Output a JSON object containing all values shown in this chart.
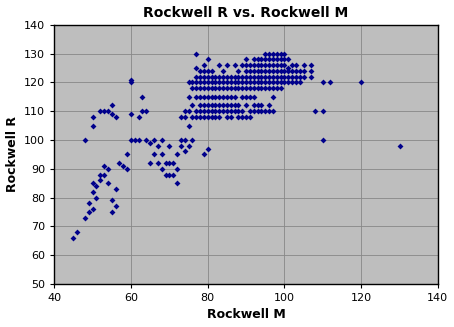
{
  "title": "Rockwell R vs. Rockwell M",
  "xlabel": "Rockwell M",
  "ylabel": "Rockwell R",
  "xlim": [
    40,
    140
  ],
  "ylim": [
    50,
    140
  ],
  "xticks": [
    40,
    60,
    80,
    100,
    120,
    140
  ],
  "yticks": [
    50,
    60,
    70,
    80,
    90,
    100,
    110,
    120,
    130,
    140
  ],
  "marker_color": "#00008B",
  "bg_color": "#BEBEBE",
  "points": [
    [
      45,
      66
    ],
    [
      46,
      68
    ],
    [
      48,
      73
    ],
    [
      49,
      75
    ],
    [
      49,
      78
    ],
    [
      50,
      76
    ],
    [
      50,
      82
    ],
    [
      50,
      85
    ],
    [
      51,
      80
    ],
    [
      51,
      84
    ],
    [
      52,
      86
    ],
    [
      52,
      88
    ],
    [
      53,
      88
    ],
    [
      53,
      91
    ],
    [
      54,
      85
    ],
    [
      54,
      90
    ],
    [
      55,
      75
    ],
    [
      55,
      79
    ],
    [
      56,
      77
    ],
    [
      56,
      83
    ],
    [
      48,
      100
    ],
    [
      50,
      105
    ],
    [
      50,
      108
    ],
    [
      52,
      110
    ],
    [
      53,
      110
    ],
    [
      54,
      110
    ],
    [
      55,
      109
    ],
    [
      55,
      112
    ],
    [
      56,
      108
    ],
    [
      57,
      92
    ],
    [
      58,
      91
    ],
    [
      59,
      90
    ],
    [
      59,
      95
    ],
    [
      60,
      100
    ],
    [
      60,
      109
    ],
    [
      60,
      120
    ],
    [
      60,
      121
    ],
    [
      61,
      100
    ],
    [
      62,
      100
    ],
    [
      62,
      108
    ],
    [
      63,
      110
    ],
    [
      63,
      115
    ],
    [
      64,
      100
    ],
    [
      64,
      110
    ],
    [
      65,
      92
    ],
    [
      65,
      99
    ],
    [
      66,
      95
    ],
    [
      66,
      100
    ],
    [
      67,
      92
    ],
    [
      67,
      98
    ],
    [
      68,
      90
    ],
    [
      68,
      95
    ],
    [
      68,
      100
    ],
    [
      69,
      88
    ],
    [
      69,
      92
    ],
    [
      70,
      88
    ],
    [
      70,
      92
    ],
    [
      70,
      98
    ],
    [
      71,
      88
    ],
    [
      71,
      92
    ],
    [
      72,
      85
    ],
    [
      72,
      90
    ],
    [
      72,
      95
    ],
    [
      73,
      98
    ],
    [
      73,
      100
    ],
    [
      73,
      108
    ],
    [
      74,
      96
    ],
    [
      74,
      100
    ],
    [
      74,
      108
    ],
    [
      74,
      110
    ],
    [
      75,
      98
    ],
    [
      75,
      105
    ],
    [
      75,
      110
    ],
    [
      75,
      115
    ],
    [
      75,
      120
    ],
    [
      76,
      100
    ],
    [
      76,
      108
    ],
    [
      76,
      112
    ],
    [
      76,
      118
    ],
    [
      76,
      120
    ],
    [
      77,
      108
    ],
    [
      77,
      110
    ],
    [
      77,
      115
    ],
    [
      77,
      118
    ],
    [
      77,
      120
    ],
    [
      77,
      122
    ],
    [
      77,
      125
    ],
    [
      77,
      130
    ],
    [
      78,
      108
    ],
    [
      78,
      110
    ],
    [
      78,
      112
    ],
    [
      78,
      115
    ],
    [
      78,
      118
    ],
    [
      78,
      120
    ],
    [
      78,
      122
    ],
    [
      78,
      124
    ],
    [
      79,
      95
    ],
    [
      79,
      108
    ],
    [
      79,
      110
    ],
    [
      79,
      112
    ],
    [
      79,
      115
    ],
    [
      79,
      118
    ],
    [
      79,
      120
    ],
    [
      79,
      122
    ],
    [
      79,
      124
    ],
    [
      79,
      126
    ],
    [
      80,
      97
    ],
    [
      80,
      108
    ],
    [
      80,
      110
    ],
    [
      80,
      112
    ],
    [
      80,
      115
    ],
    [
      80,
      118
    ],
    [
      80,
      120
    ],
    [
      80,
      122
    ],
    [
      80,
      124
    ],
    [
      80,
      128
    ],
    [
      81,
      108
    ],
    [
      81,
      110
    ],
    [
      81,
      112
    ],
    [
      81,
      115
    ],
    [
      81,
      118
    ],
    [
      81,
      120
    ],
    [
      81,
      122
    ],
    [
      81,
      124
    ],
    [
      82,
      108
    ],
    [
      82,
      110
    ],
    [
      82,
      112
    ],
    [
      82,
      115
    ],
    [
      82,
      118
    ],
    [
      82,
      120
    ],
    [
      82,
      122
    ],
    [
      83,
      108
    ],
    [
      83,
      110
    ],
    [
      83,
      112
    ],
    [
      83,
      115
    ],
    [
      83,
      118
    ],
    [
      83,
      120
    ],
    [
      83,
      122
    ],
    [
      83,
      126
    ],
    [
      84,
      110
    ],
    [
      84,
      112
    ],
    [
      84,
      115
    ],
    [
      84,
      118
    ],
    [
      84,
      120
    ],
    [
      84,
      122
    ],
    [
      84,
      124
    ],
    [
      85,
      108
    ],
    [
      85,
      110
    ],
    [
      85,
      112
    ],
    [
      85,
      115
    ],
    [
      85,
      118
    ],
    [
      85,
      120
    ],
    [
      85,
      122
    ],
    [
      85,
      126
    ],
    [
      86,
      108
    ],
    [
      86,
      110
    ],
    [
      86,
      112
    ],
    [
      86,
      115
    ],
    [
      86,
      118
    ],
    [
      86,
      120
    ],
    [
      86,
      122
    ],
    [
      87,
      110
    ],
    [
      87,
      112
    ],
    [
      87,
      115
    ],
    [
      87,
      118
    ],
    [
      87,
      120
    ],
    [
      87,
      122
    ],
    [
      87,
      126
    ],
    [
      88,
      108
    ],
    [
      88,
      110
    ],
    [
      88,
      112
    ],
    [
      88,
      118
    ],
    [
      88,
      120
    ],
    [
      88,
      122
    ],
    [
      88,
      124
    ],
    [
      89,
      108
    ],
    [
      89,
      110
    ],
    [
      89,
      115
    ],
    [
      89,
      118
    ],
    [
      89,
      120
    ],
    [
      89,
      122
    ],
    [
      89,
      126
    ],
    [
      90,
      108
    ],
    [
      90,
      112
    ],
    [
      90,
      115
    ],
    [
      90,
      118
    ],
    [
      90,
      120
    ],
    [
      90,
      122
    ],
    [
      90,
      124
    ],
    [
      90,
      126
    ],
    [
      90,
      128
    ],
    [
      91,
      108
    ],
    [
      91,
      110
    ],
    [
      91,
      115
    ],
    [
      91,
      118
    ],
    [
      91,
      120
    ],
    [
      91,
      122
    ],
    [
      91,
      124
    ],
    [
      91,
      126
    ],
    [
      92,
      110
    ],
    [
      92,
      112
    ],
    [
      92,
      115
    ],
    [
      92,
      118
    ],
    [
      92,
      120
    ],
    [
      92,
      122
    ],
    [
      92,
      124
    ],
    [
      92,
      126
    ],
    [
      92,
      128
    ],
    [
      93,
      110
    ],
    [
      93,
      112
    ],
    [
      93,
      118
    ],
    [
      93,
      120
    ],
    [
      93,
      122
    ],
    [
      93,
      124
    ],
    [
      93,
      126
    ],
    [
      93,
      128
    ],
    [
      94,
      110
    ],
    [
      94,
      112
    ],
    [
      94,
      118
    ],
    [
      94,
      120
    ],
    [
      94,
      122
    ],
    [
      94,
      124
    ],
    [
      94,
      126
    ],
    [
      94,
      128
    ],
    [
      95,
      110
    ],
    [
      95,
      118
    ],
    [
      95,
      120
    ],
    [
      95,
      122
    ],
    [
      95,
      124
    ],
    [
      95,
      126
    ],
    [
      95,
      128
    ],
    [
      95,
      130
    ],
    [
      96,
      110
    ],
    [
      96,
      112
    ],
    [
      96,
      118
    ],
    [
      96,
      120
    ],
    [
      96,
      122
    ],
    [
      96,
      124
    ],
    [
      96,
      126
    ],
    [
      96,
      128
    ],
    [
      96,
      130
    ],
    [
      97,
      110
    ],
    [
      97,
      115
    ],
    [
      97,
      118
    ],
    [
      97,
      120
    ],
    [
      97,
      122
    ],
    [
      97,
      124
    ],
    [
      97,
      126
    ],
    [
      97,
      128
    ],
    [
      97,
      130
    ],
    [
      98,
      118
    ],
    [
      98,
      120
    ],
    [
      98,
      122
    ],
    [
      98,
      124
    ],
    [
      98,
      126
    ],
    [
      98,
      128
    ],
    [
      98,
      130
    ],
    [
      99,
      118
    ],
    [
      99,
      120
    ],
    [
      99,
      122
    ],
    [
      99,
      124
    ],
    [
      99,
      126
    ],
    [
      99,
      128
    ],
    [
      99,
      130
    ],
    [
      100,
      120
    ],
    [
      100,
      122
    ],
    [
      100,
      124
    ],
    [
      100,
      126
    ],
    [
      100,
      128
    ],
    [
      100,
      130
    ],
    [
      101,
      120
    ],
    [
      101,
      122
    ],
    [
      101,
      124
    ],
    [
      101,
      125
    ],
    [
      101,
      128
    ],
    [
      102,
      120
    ],
    [
      102,
      122
    ],
    [
      102,
      124
    ],
    [
      102,
      126
    ],
    [
      103,
      120
    ],
    [
      103,
      122
    ],
    [
      103,
      124
    ],
    [
      103,
      126
    ],
    [
      104,
      120
    ],
    [
      104,
      122
    ],
    [
      104,
      124
    ],
    [
      105,
      122
    ],
    [
      105,
      124
    ],
    [
      105,
      126
    ],
    [
      107,
      122
    ],
    [
      107,
      124
    ],
    [
      107,
      126
    ],
    [
      108,
      110
    ],
    [
      110,
      100
    ],
    [
      110,
      110
    ],
    [
      110,
      120
    ],
    [
      112,
      120
    ],
    [
      120,
      120
    ],
    [
      130,
      98
    ]
  ]
}
